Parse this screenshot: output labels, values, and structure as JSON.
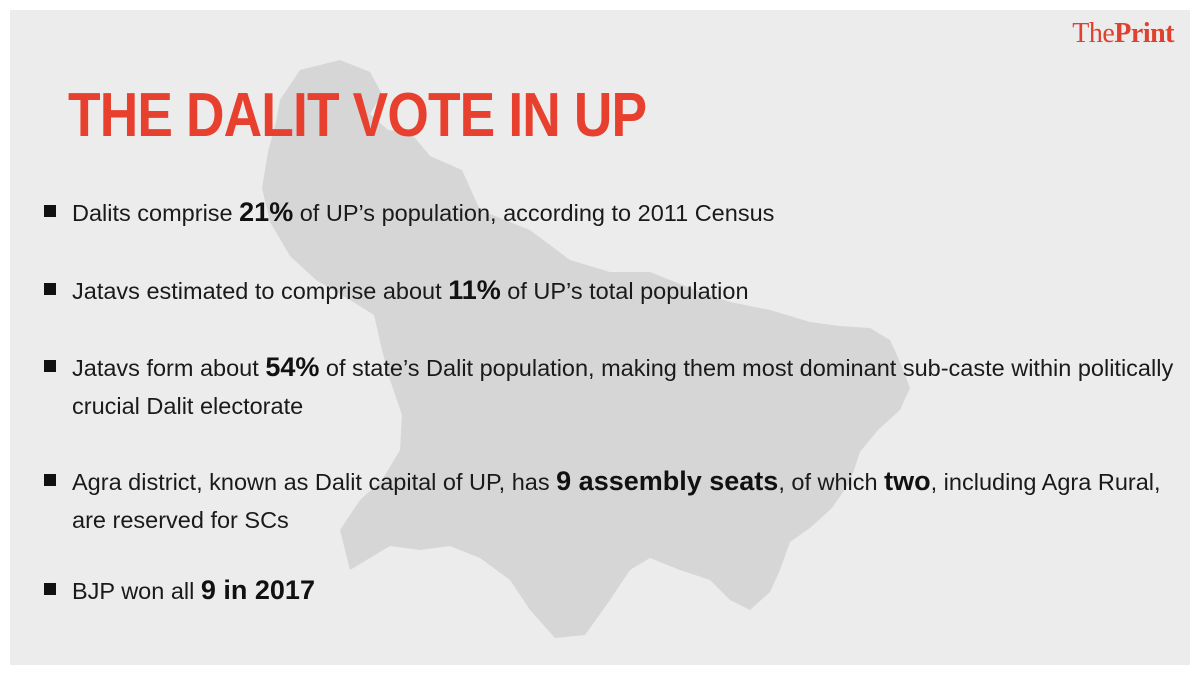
{
  "brand": {
    "part1": "The",
    "part2": "Print",
    "color": "#e0402e"
  },
  "title": "THE DALIT VOTE IN UP",
  "title_color": "#e8402f",
  "facts": [
    {
      "segments": [
        {
          "text": "Dalits comprise ",
          "bold": false
        },
        {
          "text": "21%",
          "bold": true
        },
        {
          "text": " of UP’s population, according to 2011 Census",
          "bold": false
        }
      ]
    },
    {
      "segments": [
        {
          "text": "Jatavs estimated to comprise about ",
          "bold": false
        },
        {
          "text": "11%",
          "bold": true
        },
        {
          "text": " of UP’s total population",
          "bold": false
        }
      ]
    },
    {
      "segments": [
        {
          "text": "Jatavs form about ",
          "bold": false
        },
        {
          "text": "54%",
          "bold": true
        },
        {
          "text": " of state’s Dalit population, making them most dominant sub-caste within politically crucial Dalit electorate",
          "bold": false
        }
      ]
    },
    {
      "segments": [
        {
          "text": "Agra district, known as Dalit capital of UP, has ",
          "bold": false
        },
        {
          "text": "9 assembly seats",
          "bold": true
        },
        {
          "text": ", of which ",
          "bold": false
        },
        {
          "text": "two",
          "bold": true
        },
        {
          "text": ", including Agra Rural, are reserved for SCs",
          "bold": false
        }
      ]
    },
    {
      "segments": [
        {
          "text": "BJP won all ",
          "bold": false
        },
        {
          "text": "9 in 2017",
          "bold": true
        }
      ]
    }
  ],
  "background_color": "#ececec",
  "map_color": "#d6d6d6",
  "icons": {
    "bullet": "square-bullet-icon",
    "map": "uttar-pradesh-map-silhouette"
  }
}
